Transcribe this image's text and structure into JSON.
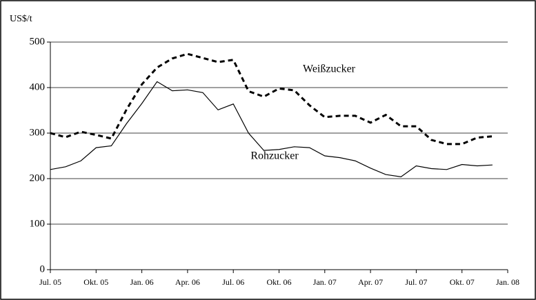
{
  "chart_data": {
    "type": "line",
    "y_axis_label": "US$/t",
    "categories": [
      "Jul. 05",
      null,
      null,
      "Okt. 05",
      null,
      null,
      "Jan. 06",
      null,
      null,
      "Apr. 06",
      null,
      null,
      "Jul. 06",
      null,
      null,
      "Okt. 06",
      null,
      null,
      "Jan. 07",
      null,
      null,
      "Apr. 07",
      null,
      null,
      "Jul. 07",
      null,
      null,
      "Okt. 07",
      null,
      null,
      "Jan. 08"
    ],
    "series": [
      {
        "name": "Weißzucker",
        "color": "#000000",
        "style": "dashed",
        "values": [
          300,
          291,
          303,
          296,
          288,
          352,
          407,
          444,
          464,
          474,
          465,
          456,
          461,
          392,
          380,
          398,
          394,
          361,
          335,
          338,
          338,
          323,
          340,
          315,
          315,
          285,
          276,
          276,
          290,
          293,
          null
        ]
      },
      {
        "name": "Rohzucker",
        "color": "#000000",
        "style": "solid",
        "values": [
          220,
          226,
          239,
          268,
          272,
          321,
          365,
          413,
          393,
          395,
          389,
          351,
          364,
          300,
          262,
          264,
          270,
          268,
          250,
          246,
          239,
          223,
          209,
          204,
          228,
          222,
          220,
          231,
          228,
          230,
          null
        ]
      }
    ],
    "ylim": [
      0,
      500
    ],
    "yticks": [
      0,
      100,
      200,
      300,
      400,
      500
    ],
    "grid": true
  }
}
